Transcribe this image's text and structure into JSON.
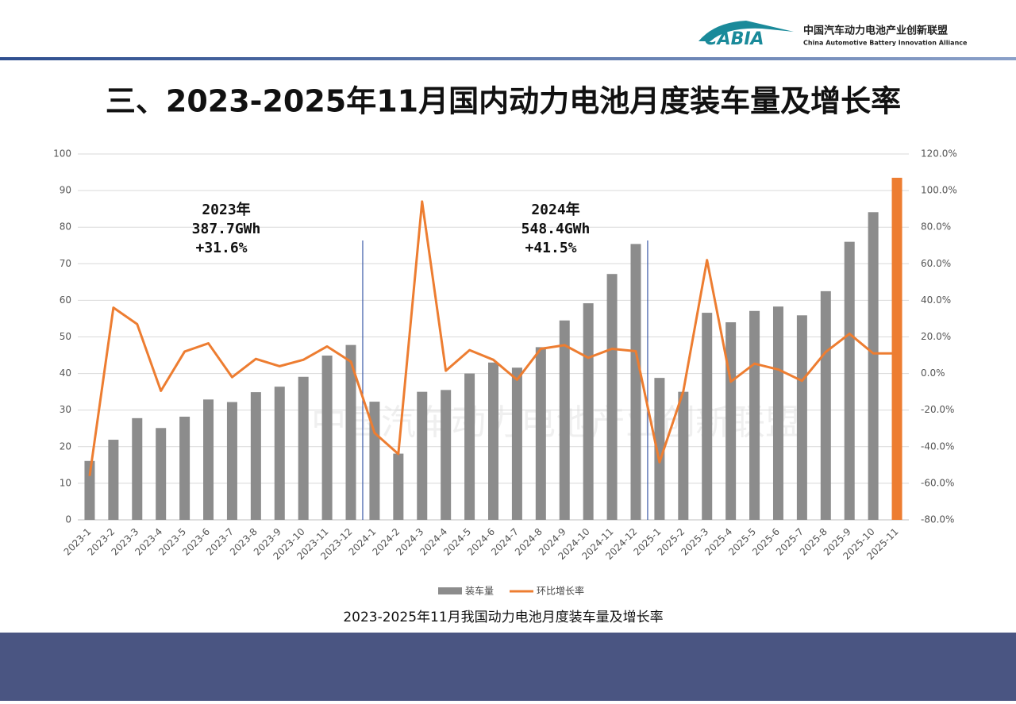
{
  "header": {
    "logo": "CABIA",
    "org_cn": "中国汽车动力电池产业创新联盟",
    "org_en": "China Automotive Battery Innovation Alliance"
  },
  "title": "三、2023-2025年11月国内动力电池月度装车量及增长率",
  "caption": "2023-2025年11月我国动力电池月度装车量及增长率",
  "chart_data": {
    "type": "bar-line",
    "categories": [
      "2023-1",
      "2023-2",
      "2023-3",
      "2023-4",
      "2023-5",
      "2023-6",
      "2023-7",
      "2023-8",
      "2023-9",
      "2023-10",
      "2023-11",
      "2023-12",
      "2024-1",
      "2024-2",
      "2024-3",
      "2024-4",
      "2024-5",
      "2024-6",
      "2024-7",
      "2024-8",
      "2024-9",
      "2024-10",
      "2024-11",
      "2024-12",
      "2025-1",
      "2025-2",
      "2025-3",
      "2025-4",
      "2025-5",
      "2025-6",
      "2025-7",
      "2025-8",
      "2025-9",
      "2025-10",
      "2025-11"
    ],
    "series": [
      {
        "name": "装车量",
        "type": "bar",
        "color": "#8c8c8c",
        "colors": [
          "#8c8c8c",
          "#8c8c8c",
          "#8c8c8c",
          "#8c8c8c",
          "#8c8c8c",
          "#8c8c8c",
          "#8c8c8c",
          "#8c8c8c",
          "#8c8c8c",
          "#8c8c8c",
          "#8c8c8c",
          "#8c8c8c",
          "#8c8c8c",
          "#8c8c8c",
          "#8c8c8c",
          "#8c8c8c",
          "#8c8c8c",
          "#8c8c8c",
          "#8c8c8c",
          "#8c8c8c",
          "#8c8c8c",
          "#8c8c8c",
          "#8c8c8c",
          "#8c8c8c",
          "#8c8c8c",
          "#8c8c8c",
          "#8c8c8c",
          "#8c8c8c",
          "#8c8c8c",
          "#8c8c8c",
          "#8c8c8c",
          "#8c8c8c",
          "#8c8c8c",
          "#8c8c8c",
          "#ed7d31"
        ],
        "values": [
          16.1,
          21.9,
          27.8,
          25.1,
          28.2,
          32.9,
          32.2,
          34.9,
          36.4,
          39.1,
          44.9,
          47.8,
          32.3,
          18.1,
          35.0,
          35.5,
          40.0,
          43.0,
          41.6,
          47.2,
          54.5,
          59.2,
          67.2,
          75.4,
          38.8,
          35.0,
          56.6,
          54.0,
          57.1,
          58.3,
          55.9,
          62.5,
          76.0,
          84.1,
          93.5
        ]
      },
      {
        "name": "环比增长率",
        "type": "line",
        "axis": "y2",
        "color": "#ed7d31",
        "values": [
          -56,
          36,
          27,
          -9.5,
          12,
          16.5,
          -2,
          8,
          4,
          7.5,
          14.8,
          6.5,
          -32.5,
          -44,
          94,
          1.5,
          12.8,
          7.5,
          -3.4,
          13.5,
          15.5,
          8.6,
          13.5,
          12.2,
          -48.5,
          -9.8,
          62,
          -4.5,
          5.4,
          2.2,
          -4,
          11.8,
          21.7,
          11,
          11
        ]
      }
    ],
    "ylim": [
      0,
      100
    ],
    "yticks": [
      0,
      10,
      20,
      30,
      40,
      50,
      60,
      70,
      80,
      90,
      100
    ],
    "y2lim": [
      -80,
      120
    ],
    "y2ticks": [
      {
        "value": -80,
        "label": "-80.0%"
      },
      {
        "value": -60,
        "label": "-60.0%"
      },
      {
        "value": -40,
        "label": "-40.0%"
      },
      {
        "value": -20,
        "label": "-20.0%"
      },
      {
        "value": 0,
        "label": "0.0%"
      },
      {
        "value": 20,
        "label": "20.0%"
      },
      {
        "value": 40,
        "label": "40.0%"
      },
      {
        "value": 60,
        "label": "60.0%"
      },
      {
        "value": 80,
        "label": "80.0%"
      },
      {
        "value": 100,
        "label": "100.0%"
      },
      {
        "value": 120,
        "label": "120.0%"
      }
    ],
    "grid": true,
    "legend": "bottom",
    "annotations": [
      [
        "2023年",
        "387.7GWh",
        "+31.6%"
      ],
      [
        "2024年",
        "548.4GWh",
        "+41.5%"
      ]
    ]
  }
}
